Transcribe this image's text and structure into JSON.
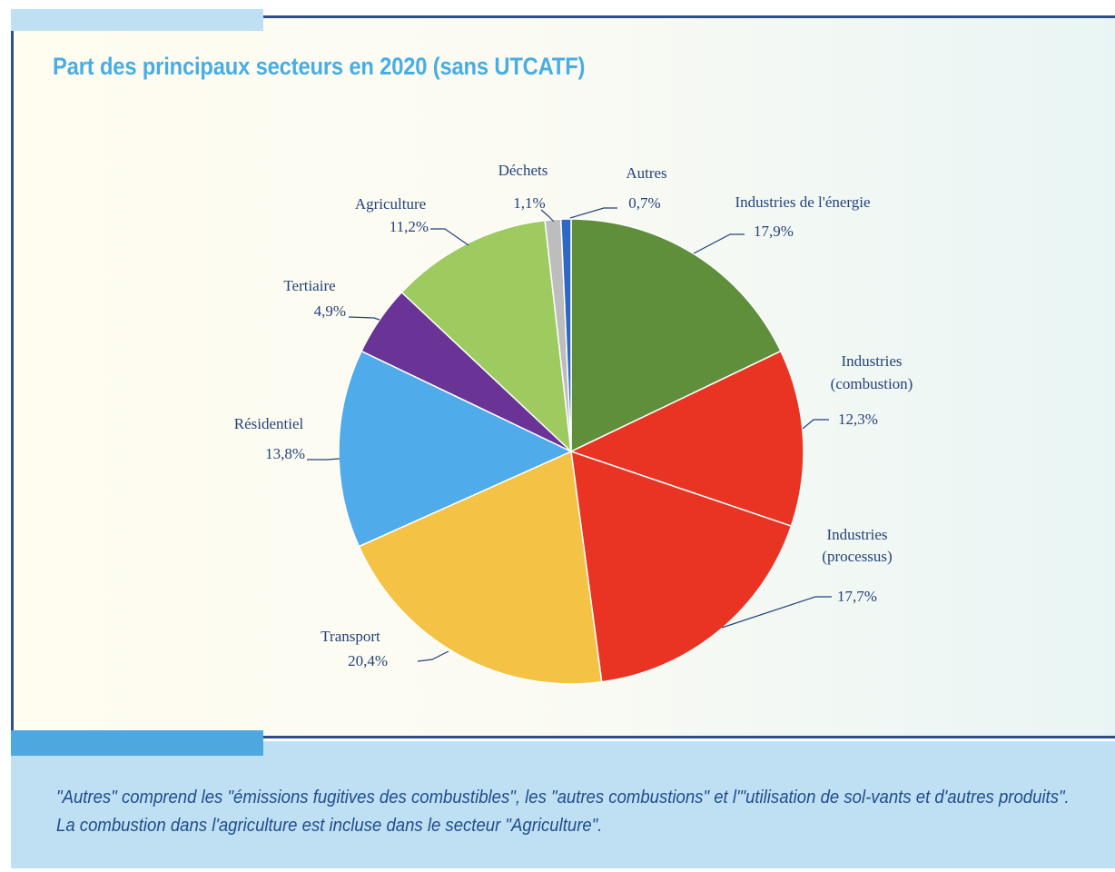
{
  "title": "Part des principaux secteurs en 2020 (sans UTCATF)",
  "note": "\"Autres\" comprend les \"émissions fugitives des combustibles\", les \"autres combustions\" et l'\"utilisation de sol-vants et d'autres produits\". La combustion dans l'agriculture est incluse dans le secteur \"Agriculture\".",
  "chart_data": {
    "type": "pie",
    "title": "Part des principaux secteurs en 2020 (sans UTCATF)",
    "unit": "%",
    "slices": [
      {
        "name": "Industries de l'énergie",
        "value": 17.9,
        "label": "17,9%",
        "color": "#5f8f3a"
      },
      {
        "name": "Industries (combustion)",
        "value": 12.3,
        "label": "12,3%",
        "color": "#e93423"
      },
      {
        "name": "Industries (processus)",
        "value": 17.7,
        "label": "17,7%",
        "color": "#e93423"
      },
      {
        "name": "Transport",
        "value": 20.4,
        "label": "20,4%",
        "color": "#f4c245"
      },
      {
        "name": "Résidentiel",
        "value": 13.8,
        "label": "13,8%",
        "color": "#4fabe9"
      },
      {
        "name": "Tertiaire",
        "value": 4.9,
        "label": "4,9%",
        "color": "#6a3396"
      },
      {
        "name": "Agriculture",
        "value": 11.2,
        "label": "11,2%",
        "color": "#9ecb60"
      },
      {
        "name": "Déchets",
        "value": 1.1,
        "label": "1,1%",
        "color": "#bdbdbd"
      },
      {
        "name": "Autres",
        "value": 0.7,
        "label": "0,7%",
        "color": "#2d68c4"
      }
    ]
  }
}
